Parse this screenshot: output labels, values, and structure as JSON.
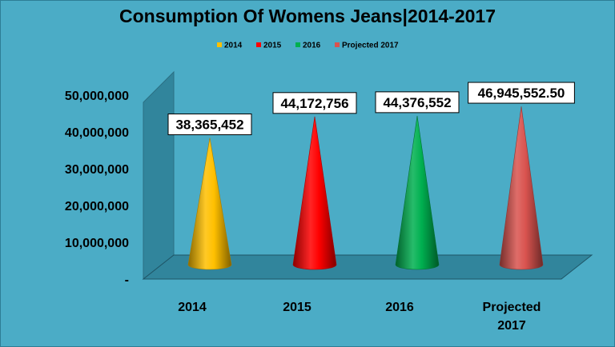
{
  "chart_data": {
    "type": "bar",
    "bar_shape": "cone",
    "title": "Consumption Of Womens Jeans|2014-2017",
    "categories": [
      [
        "2014"
      ],
      [
        "2015"
      ],
      [
        "2016"
      ],
      [
        "Projected",
        "2017"
      ]
    ],
    "series": [
      {
        "name": "2014",
        "values": [
          38365452,
          null,
          null,
          null
        ],
        "color": "#ffc000"
      },
      {
        "name": "2015",
        "values": [
          null,
          44172756,
          null,
          null
        ],
        "color": "#ff0000"
      },
      {
        "name": "2016",
        "values": [
          null,
          null,
          44376552,
          null
        ],
        "color": "#00b050"
      },
      {
        "name": "Projected 2017",
        "values": [
          null,
          null,
          null,
          46945552.5
        ],
        "color": "#d9534f"
      }
    ],
    "data_labels": [
      "38,365,452",
      "44,172,756",
      "44,376,552",
      "46,945,552.50"
    ],
    "y_ticks": [
      "-",
      "10,000,000",
      "20,000,000",
      "30,000,000",
      "40,000,000",
      "50,000,000"
    ],
    "ylim": [
      0,
      50000000
    ],
    "legend_position": "top",
    "grid": false,
    "colors": {
      "background": "#4bacc6",
      "wall": "#31859c",
      "floor": "#31859c"
    }
  }
}
